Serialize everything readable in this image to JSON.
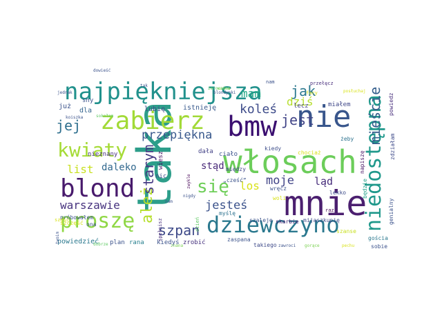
{
  "words": [
    {
      "text": "taka",
      "color": "#2d9e8a"
    },
    {
      "text": "mnie",
      "color": "#4b1f6f"
    },
    {
      "text": "włosach",
      "color": "#6ccd5a"
    },
    {
      "text": "dziewczyno",
      "color": "#2a788e"
    },
    {
      "text": "nie",
      "color": "#39568c"
    },
    {
      "text": "bmw",
      "color": "#3b0f70"
    },
    {
      "text": "zabierz",
      "color": "#a2da37"
    },
    {
      "text": "najpiękniejsza",
      "color": "#21918c"
    },
    {
      "text": "blond",
      "color": "#481a6c"
    },
    {
      "text": "niedostępna",
      "color": "#1f988b"
    },
    {
      "text": "kwiaty",
      "color": "#a5db36"
    },
    {
      "text": "proszę",
      "color": "#8fd744"
    },
    {
      "text": "się",
      "color": "#6ece58"
    },
    {
      "text": "jest",
      "color": "#414487"
    },
    {
      "text": "koleś",
      "color": "#3e4c8a"
    },
    {
      "text": "przepiękna",
      "color": "#38588c"
    },
    {
      "text": "ależ",
      "color": "#b5de2b"
    },
    {
      "text": "starym",
      "color": "#443983"
    },
    {
      "text": "jak",
      "color": "#2a788e"
    },
    {
      "text": "mam",
      "color": "#22a785"
    },
    {
      "text": "dziś",
      "color": "#b5de2b"
    },
    {
      "text": "mieście",
      "color": "#355f8d"
    },
    {
      "text": "jej",
      "color": "#2e6f8e"
    },
    {
      "text": "szpan",
      "color": "#3e4a89"
    },
    {
      "text": "warszawie",
      "color": "#46327e"
    },
    {
      "text": "jesteś",
      "color": "#3b528b"
    },
    {
      "text": "moje",
      "color": "#414487"
    },
    {
      "text": "list",
      "color": "#c8e020"
    },
    {
      "text": "daleko",
      "color": "#31688e"
    },
    {
      "text": "stąd",
      "color": "#482878"
    },
    {
      "text": "los",
      "color": "#d8e219"
    },
    {
      "text": "ląd",
      "color": "#472d7b"
    },
    {
      "text": "już",
      "color": "#3b528b"
    },
    {
      "text": "dla",
      "color": "#33638d"
    },
    {
      "text": "lubię",
      "color": "#3e4989"
    },
    {
      "text": "istnieję",
      "color": "#38598c"
    },
    {
      "text": "lecz",
      "color": "#424086"
    },
    {
      "text": "miałem",
      "color": "#3f4788"
    },
    {
      "text": "sny",
      "color": "#3b528b"
    },
    {
      "text": "nieznany",
      "color": "#46307e"
    },
    {
      "text": "nic",
      "color": "#3e4c8a"
    },
    {
      "text": "wiesz",
      "color": "#471365"
    },
    {
      "text": "dała",
      "color": "#424186"
    },
    {
      "text": "ciało",
      "color": "#3b528b"
    },
    {
      "text": "kiedy",
      "color": "#3d4e8a"
    },
    {
      "text": "chociaż",
      "color": "#d8e219"
    },
    {
      "text": "żeby",
      "color": "#2c728e"
    },
    {
      "text": "powiedzieć",
      "color": "#2a788e"
    },
    {
      "text": "plan",
      "color": "#3b528b"
    },
    {
      "text": "rana",
      "color": "#277f8e"
    },
    {
      "text": "kiedyś",
      "color": "#3b528b"
    },
    {
      "text": "zrobić",
      "color": "#46327e"
    },
    {
      "text": "zaspana",
      "color": "#3b528b"
    },
    {
      "text": "takiego",
      "color": "#3e4a89"
    },
    {
      "text": "szanse",
      "color": "#c8e020"
    },
    {
      "text": "gościa",
      "color": "#2a788e"
    },
    {
      "text": "sobie",
      "color": "#3b528b"
    },
    {
      "text": "myślę",
      "color": "#2c728e"
    },
    {
      "text": "szaleje",
      "color": "#3b528b"
    },
    {
      "text": "skarbie",
      "color": "#482475"
    },
    {
      "text": "mijaszkupię",
      "color": "#3e4a89"
    },
    {
      "text": "lekko",
      "color": "#3e4c8a"
    },
    {
      "text": "wręcz",
      "color": "#3b528b"
    },
    {
      "text": "napiszę",
      "color": "#471365"
    },
    {
      "text": "będzie",
      "color": "#1fa187"
    },
    {
      "text": "genialny",
      "color": "#3b528b"
    },
    {
      "text": "zdziałam",
      "color": "#3e4a89"
    },
    {
      "text": "powiedz",
      "color": "#472d7b"
    },
    {
      "text": "między",
      "color": "#414487"
    },
    {
      "text": "„cześć”",
      "color": "#3b528b"
    },
    {
      "text": "woli",
      "color": "#d8e219"
    },
    {
      "text": "szczęść",
      "color": "#d8e219"
    },
    {
      "text": "raz",
      "color": "#440154"
    },
    {
      "text": "fary",
      "color": "#d8e219"
    },
    {
      "text": "nam",
      "color": "#3b528b"
    },
    {
      "text": "przełęcz",
      "color": "#472d7b"
    },
    {
      "text": "próbowałem",
      "color": "#3b528b"
    },
    {
      "text": "szesc",
      "color": "#d8e219"
    },
    {
      "text": "spełnisz",
      "color": "#472d7b"
    },
    {
      "text": "dzień",
      "color": "#5ec962"
    },
    {
      "text": "znana",
      "color": "#7ad151"
    },
    {
      "text": "ona",
      "color": "#3b528b"
    },
    {
      "text": "zmroczona",
      "color": "#5ec962"
    },
    {
      "text": "jednak",
      "color": "#3b528b"
    },
    {
      "text": "sokołem",
      "color": "#5ec962"
    },
    {
      "text": "koiszka",
      "color": "#3b528b"
    },
    {
      "text": "pechu",
      "color": "#d8e219"
    },
    {
      "text": "zwykle",
      "color": "#440154"
    },
    {
      "text": "nam",
      "color": "#3b528b"
    },
    {
      "text": "ważna",
      "color": "#7ad151"
    },
    {
      "text": "blondynki",
      "color": "#3b528b"
    },
    {
      "text": "dobrze",
      "color": "#5ec962"
    },
    {
      "text": "zawroci",
      "color": "#3b528b"
    },
    {
      "text": "gorące",
      "color": "#7ad151"
    },
    {
      "text": "twoim",
      "color": "#3b528b"
    },
    {
      "text": "nigdy",
      "color": "#3b528b"
    },
    {
      "text": "posłuchaj",
      "color": "#d8e219"
    },
    {
      "text": "dowieść",
      "color": "#3b528b"
    },
    {
      "text": "tak",
      "color": "#3b528b"
    }
  ]
}
